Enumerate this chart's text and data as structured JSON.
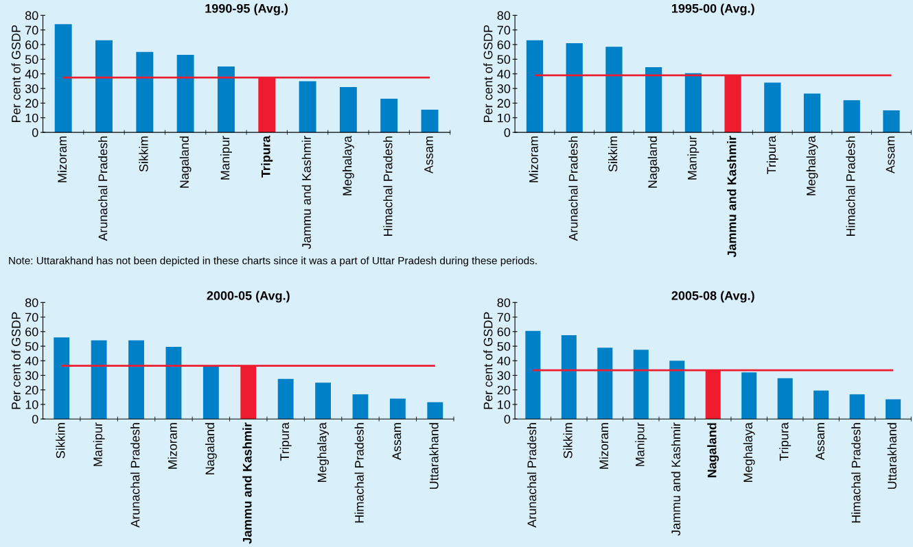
{
  "chart_data": [
    {
      "type": "bar",
      "title": "1990-95 (Avg.)",
      "ylabel": "Per cent of GSDP",
      "categories": [
        "Mizoram",
        "Arunachal Pradesh",
        "Sikkim",
        "Nagaland",
        "Manipur",
        "Tripura",
        "Jammu and Kashmir",
        "Meghalaya",
        "Himachal Pradesh",
        "Assam"
      ],
      "values": [
        74,
        63,
        55,
        53,
        45,
        38,
        35,
        31,
        23,
        15.5
      ],
      "colors": [
        "#0080c6",
        "#0080c6",
        "#0080c6",
        "#0080c6",
        "#0080c6",
        "#ed1c2e",
        "#0080c6",
        "#0080c6",
        "#0080c6",
        "#0080c6"
      ],
      "ylim": [
        0,
        80
      ],
      "yticks": [
        0,
        10,
        20,
        30,
        40,
        50,
        60,
        70,
        80
      ],
      "ref_lines": [
        {
          "axis": "y",
          "value": 37.5,
          "color": "#ed1c2e"
        }
      ],
      "annotations": [
        "Note: Uttarakhand has not been depicted in these charts since it was a part of Uttar Pradesh during these periods."
      ]
    },
    {
      "type": "bar",
      "title": "1995-00 (Avg.)",
      "ylabel": "Per cent of GSDP",
      "categories": [
        "Mizoram",
        "Arunachal Pradesh",
        "Sikkim",
        "Nagaland",
        "Manipur",
        "Jammu and Kashmir",
        "Tripura",
        "Meghalaya",
        "Himachal Pradesh",
        "Assam"
      ],
      "values": [
        63,
        61,
        58.5,
        44.5,
        40.5,
        39,
        34,
        26.5,
        22,
        15
      ],
      "colors": [
        "#0080c6",
        "#0080c6",
        "#0080c6",
        "#0080c6",
        "#0080c6",
        "#ed1c2e",
        "#0080c6",
        "#0080c6",
        "#0080c6",
        "#0080c6"
      ],
      "ylim": [
        0,
        80
      ],
      "yticks": [
        0,
        10,
        20,
        30,
        40,
        50,
        60,
        70,
        80
      ],
      "ref_lines": [
        {
          "axis": "y",
          "value": 39,
          "color": "#ed1c2e"
        }
      ]
    },
    {
      "type": "bar",
      "title": "2000-05 (Avg.)",
      "ylabel": "Per cent of GSDP",
      "categories": [
        "Sikkim",
        "Manipur",
        "Arunachal Pradesh",
        "Mizoram",
        "Nagaland",
        "Jammu and Kashmir",
        "Tripura",
        "Meghalaya",
        "Himachal Pradesh",
        "Assam",
        "Uttarakhand"
      ],
      "values": [
        56,
        54,
        54,
        49.5,
        36.5,
        36.5,
        27.5,
        25,
        17,
        14,
        11.5
      ],
      "colors": [
        "#0080c6",
        "#0080c6",
        "#0080c6",
        "#0080c6",
        "#0080c6",
        "#ed1c2e",
        "#0080c6",
        "#0080c6",
        "#0080c6",
        "#0080c6",
        "#0080c6"
      ],
      "ylim": [
        0,
        80
      ],
      "yticks": [
        0,
        10,
        20,
        30,
        40,
        50,
        60,
        70,
        80
      ],
      "ref_lines": [
        {
          "axis": "y",
          "value": 36.5,
          "color": "#ed1c2e"
        }
      ]
    },
    {
      "type": "bar",
      "title": "2005-08 (Avg.)",
      "ylabel": "Per cent of GSDP",
      "categories": [
        "Arunachal Pradesh",
        "Sikkim",
        "Mizoram",
        "Manipur",
        "Jammu and Kashmir",
        "Nagaland",
        "Meghalaya",
        "Tripura",
        "Assam",
        "Himachal Pradesh",
        "Uttarakhand"
      ],
      "values": [
        60.5,
        57.5,
        49,
        47.5,
        40,
        33.5,
        32,
        28,
        19.5,
        17,
        13.5
      ],
      "colors": [
        "#0080c6",
        "#0080c6",
        "#0080c6",
        "#0080c6",
        "#0080c6",
        "#ed1c2e",
        "#0080c6",
        "#0080c6",
        "#0080c6",
        "#0080c6",
        "#0080c6"
      ],
      "ylim": [
        0,
        80
      ],
      "yticks": [
        0,
        10,
        20,
        30,
        40,
        50,
        60,
        70,
        80
      ],
      "ref_lines": [
        {
          "axis": "y",
          "value": 33.5,
          "color": "#ed1c2e"
        }
      ]
    }
  ]
}
